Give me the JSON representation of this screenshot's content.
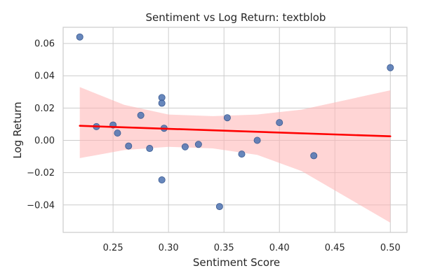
{
  "chart_data": {
    "type": "scatter",
    "title": "Sentiment vs Log Return: textblob",
    "xlabel": "Sentiment Score",
    "ylabel": "Log Return",
    "xlim": [
      0.205,
      0.515
    ],
    "ylim": [
      -0.057,
      0.07
    ],
    "xticks": [
      0.25,
      0.3,
      0.35,
      0.4,
      0.45,
      0.5
    ],
    "xtick_labels": [
      "0.25",
      "0.30",
      "0.35",
      "0.40",
      "0.45",
      "0.50"
    ],
    "yticks": [
      -0.04,
      -0.02,
      0.0,
      0.02,
      0.04,
      0.06
    ],
    "ytick_labels": [
      "−0.04",
      "−0.02",
      "0.00",
      "0.02",
      "0.04",
      "0.06"
    ],
    "grid": true,
    "colors": {
      "points": "#4c72b0",
      "line": "#ff0000",
      "band": "#ffb3b3"
    },
    "points": [
      {
        "x": 0.22,
        "y": 0.064
      },
      {
        "x": 0.235,
        "y": 0.0085
      },
      {
        "x": 0.25,
        "y": 0.0095
      },
      {
        "x": 0.254,
        "y": 0.0045
      },
      {
        "x": 0.264,
        "y": -0.0035
      },
      {
        "x": 0.275,
        "y": 0.0155
      },
      {
        "x": 0.283,
        "y": -0.005
      },
      {
        "x": 0.294,
        "y": 0.0265
      },
      {
        "x": 0.294,
        "y": 0.023
      },
      {
        "x": 0.294,
        "y": -0.0245
      },
      {
        "x": 0.296,
        "y": 0.0075
      },
      {
        "x": 0.315,
        "y": -0.004
      },
      {
        "x": 0.327,
        "y": -0.0025
      },
      {
        "x": 0.346,
        "y": -0.041
      },
      {
        "x": 0.353,
        "y": 0.014
      },
      {
        "x": 0.366,
        "y": -0.0085
      },
      {
        "x": 0.38,
        "y": 0.0
      },
      {
        "x": 0.4,
        "y": 0.011
      },
      {
        "x": 0.431,
        "y": -0.0095
      },
      {
        "x": 0.5,
        "y": 0.045
      }
    ],
    "regression": {
      "x": [
        0.22,
        0.5
      ],
      "y": [
        0.009,
        0.0025
      ]
    },
    "confidence_band": {
      "x": [
        0.22,
        0.26,
        0.3,
        0.34,
        0.38,
        0.42,
        0.46,
        0.5
      ],
      "upper": [
        0.033,
        0.022,
        0.016,
        0.015,
        0.016,
        0.019,
        0.025,
        0.031
      ],
      "lower": [
        -0.011,
        -0.006,
        -0.004,
        -0.005,
        -0.009,
        -0.019,
        -0.035,
        -0.051
      ]
    }
  }
}
